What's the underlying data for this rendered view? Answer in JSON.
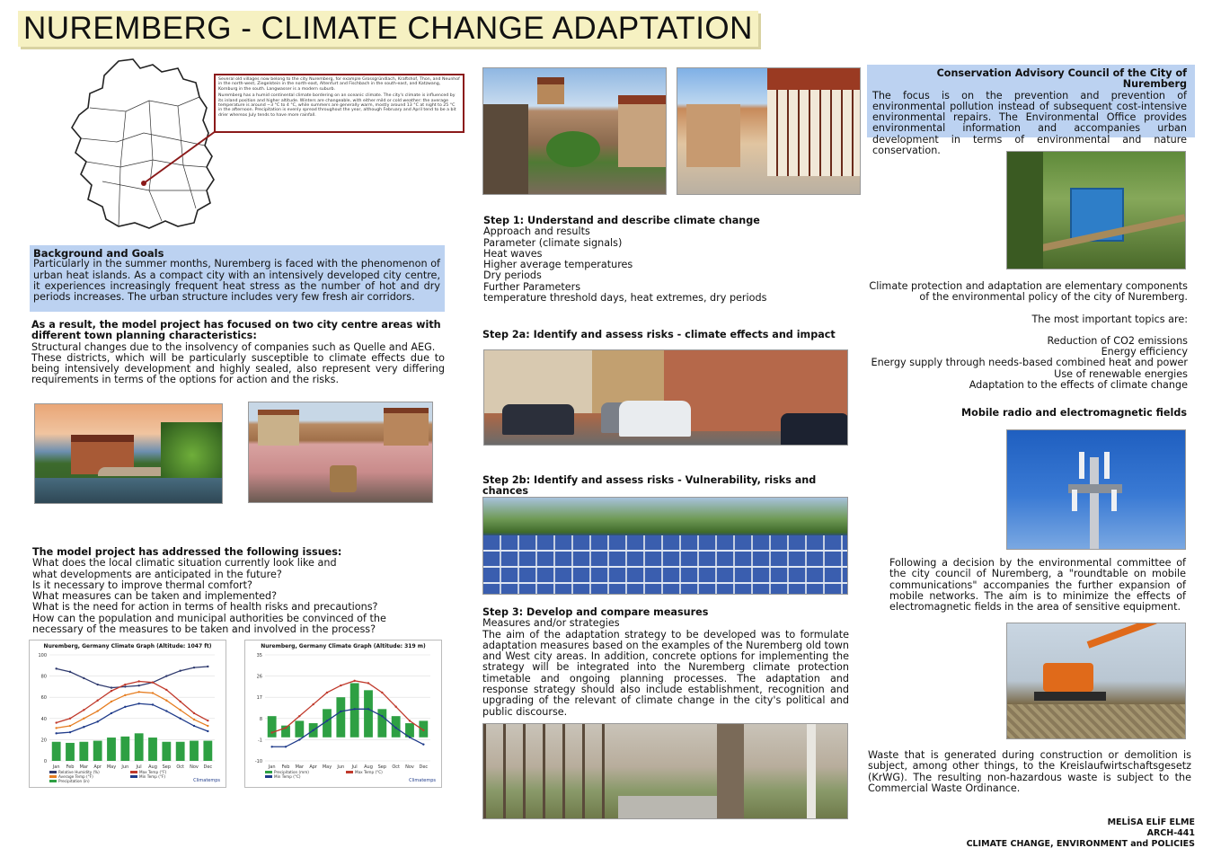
{
  "title": "NUREMBERG - CLIMATE CHANGE ADAPTATION",
  "map_caption": {
    "p1": "Several old villages now belong to the city Nuremberg, for example Grossgründlach, Kraftshof, Thon, and Neunhof in the north-west, Ziegelstein in the north-east, Altenfurt and Fischbach in the south-east, and Katzwang, Kornburg in the south. Langwasser is a modern suburb.",
    "p2": "Nuremberg has a humid continental climate bordering on an oceanic climate. The city's climate is influenced by its inland position and higher altitude. Winters are changeable, with either mild or cold weather: the average temperature is around −3 °C to 4 °C, while summers are generally warm, mostly around 13 °C at night to 25 °C in the afternoon. Precipitation is evenly spread throughout the year, although February and April tend to be a bit drier whereas July tends to have more rainfall."
  },
  "background": {
    "heading": "Background and Goals",
    "text": "Particularly in the summer months, Nuremberg is faced with the phenomenon of urban heat islands. As a compact city with an intensively developed city centre, it experiences increasingly frequent heat stress as the number of hot and dry periods increases. The urban structure includes very few fresh air corridors."
  },
  "result": {
    "heading": "As a result, the model project has focused on two city centre areas with different town planning characteristics:",
    "line1": "Structural changes due to the insolvency of companies such as Quelle and AEG.",
    "line2": "These districts, which will be particularly susceptible to climate effects due to being intensively development and highly sealed, also represent very differing requirements in terms of the options for action and the risks."
  },
  "issues": {
    "heading": "The model project has addressed the following issues:",
    "items": [
      "What does the local climatic situation currently look like and",
      "what developments are anticipated in the future?",
      "Is it necessary to improve thermal comfort?",
      "What measures can be taken and implemented?",
      "What is the need for action in terms of health risks and precautions?",
      "How can the population and municipal authorities be convinced of the",
      "necessary of the measures to be taken and involved in the process?"
    ]
  },
  "charts": {
    "left_title": "Nuremberg, Germany Climate Graph (Altitude: 1047 ft)",
    "right_title": "Nuremberg, Germany Climate Graph (Altitude: 319 m)",
    "credit": "Climatemps"
  },
  "chart_data": [
    {
      "type": "line",
      "title": "Nuremberg, Germany Climate Graph (Altitude: 1047 ft)",
      "categories": [
        "Jan",
        "Feb",
        "Mar",
        "Apr",
        "May",
        "Jun",
        "Jul",
        "Aug",
        "Sep",
        "Oct",
        "Nov",
        "Dec"
      ],
      "ylim": [
        0,
        100
      ],
      "series": [
        {
          "name": "Relative Humidity (%)",
          "color": "#2f3a6e",
          "values": [
            87,
            84,
            78,
            72,
            69,
            70,
            71,
            74,
            80,
            85,
            88,
            89
          ]
        },
        {
          "name": "Max Temp (°F)",
          "color": "#c0392b",
          "values": [
            36,
            40,
            48,
            57,
            66,
            72,
            75,
            74,
            67,
            56,
            45,
            38
          ]
        },
        {
          "name": "Average Temp (°F)",
          "color": "#e67e22",
          "values": [
            31,
            33,
            40,
            47,
            56,
            62,
            65,
            64,
            57,
            48,
            39,
            33
          ]
        },
        {
          "name": "Min Temp (°F)",
          "color": "#1f3b8a",
          "values": [
            26,
            27,
            32,
            37,
            45,
            51,
            54,
            53,
            47,
            40,
            33,
            28
          ]
        },
        {
          "name": "Precipitation (in)",
          "color": "#2ea043",
          "values": [
            18,
            17,
            18,
            19,
            22,
            23,
            26,
            22,
            18,
            18,
            19,
            19
          ]
        }
      ]
    },
    {
      "type": "bar",
      "title": "Nuremberg, Germany Climate Graph (Altitude: 319 m)",
      "categories": [
        "Jan",
        "Feb",
        "Mar",
        "Apr",
        "May",
        "Jun",
        "Jul",
        "Aug",
        "Sep",
        "Oct",
        "Nov",
        "Dec"
      ],
      "ylim": [
        -10,
        35
      ],
      "series": [
        {
          "name": "Precipitation (mm)",
          "color": "#2ea043",
          "values": [
            9,
            5,
            7,
            6,
            12,
            17,
            23,
            20,
            12,
            9,
            6,
            7
          ]
        },
        {
          "name": "Max Temp (°C)",
          "color": "#c0392b",
          "values": [
            2,
            4,
            9,
            14,
            19,
            22,
            24,
            23,
            19,
            13,
            7,
            3
          ]
        },
        {
          "name": "Min Temp (°C)",
          "color": "#1f3b8a",
          "values": [
            -4,
            -4,
            -1,
            3,
            7,
            11,
            12,
            12,
            9,
            4,
            0,
            -3
          ]
        }
      ]
    }
  ],
  "steps": {
    "s1_heading": "Step 1: Understand and describe climate change",
    "s1_lines": [
      "Approach and results",
      "Parameter (climate signals)",
      "Heat waves",
      "Higher average temperatures",
      "Dry periods",
      "Further Parameters",
      "temperature threshold days, heat extremes, dry periods"
    ],
    "s2a_heading": "Step 2a: Identify and assess risks - climate effects and impact",
    "s2b_heading": "Step 2b: Identify and assess risks - Vulnerability, risks and chances",
    "s3_heading": "Step 3: Develop and compare measures",
    "s3_sub": "Measures and/or strategies",
    "s3_text": "The aim of the adaptation strategy to be developed was to formulate adaptation measures based on the examples of the Nuremberg old town and West city areas. In addition, concrete options for implementing the strategy will be integrated into the Nuremberg climate protection timetable and ongoing planning processes. The adaptation and response strategy should also include establishment, recognition and upgrading of the relevant of climate change in the city's political and public discourse."
  },
  "council": {
    "heading": "Conservation Advisory Council of the City of Nuremberg",
    "text": "The focus is on the prevention and prevention of environmental pollution instead of subsequent cost-intensive environmental repairs. The Environmental Office provides environmental information and accompanies urban development in terms of environmental and nature conservation."
  },
  "policy": {
    "line1": "Climate protection and adaptation are elementary components",
    "line2": "of the environmental policy of the city of Nuremberg.",
    "topics_intro": "The most important topics are:",
    "topics": [
      "Reduction of CO2 emissions",
      "Energy efficiency",
      "Energy supply through needs-based combined heat and power",
      "Use of renewable energies",
      "Adaptation to the effects of climate change"
    ]
  },
  "mobile": {
    "heading": "Mobile radio and electromagnetic fields",
    "text": "Following a decision by the environmental committee of the city council of Nuremberg, a \"roundtable on mobile communications\" accompanies the further expansion of mobile networks. The aim is to minimize the effects of electromagnetic fields in the area of sensitive equipment."
  },
  "waste": {
    "text": "Waste that is generated during construction or demolition is subject, among other things, to the Kreislaufwirtschaftsgesetz (KrWG). The resulting non-hazardous waste is subject to the Commercial Waste Ordinance."
  },
  "signature": {
    "name": "MELİSA ELİF ELME",
    "course": "ARCH-441",
    "subject": "CLIMATE CHANGE, ENVIRONMENT and POLICIES"
  }
}
